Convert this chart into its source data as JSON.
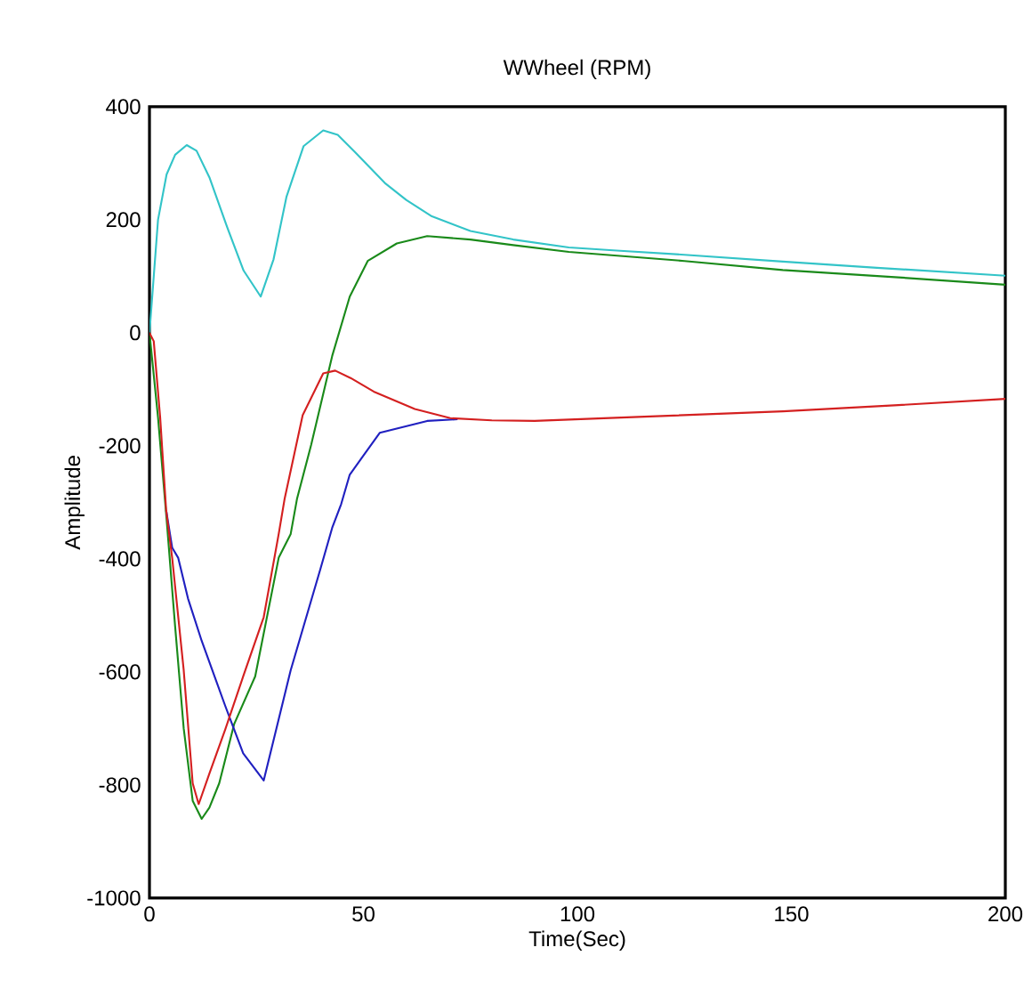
{
  "chart_data": {
    "type": "line",
    "title": "WWheel (RPM)",
    "xlabel": "Time(Sec)",
    "ylabel": "Amplitude",
    "xlim": [
      0,
      200
    ],
    "ylim": [
      -1000,
      400
    ],
    "xticks": [
      0,
      50,
      100,
      150,
      200
    ],
    "yticks": [
      -1000,
      -800,
      -600,
      -400,
      -200,
      0,
      200,
      400
    ],
    "grid": false,
    "series": [
      {
        "color": "#33c4c8",
        "x": [
          0,
          2,
          4,
          6,
          8.7,
          11,
          14,
          18,
          22,
          26,
          29,
          32,
          36,
          40.6,
          44,
          48,
          55,
          60,
          66,
          75,
          85,
          98,
          110,
          125,
          148,
          170,
          200
        ],
        "values": [
          0,
          200,
          280,
          315,
          332,
          322,
          275,
          190,
          110,
          64,
          130,
          240,
          330,
          358,
          350,
          320,
          265,
          235,
          206,
          180,
          165,
          151,
          145,
          138,
          126,
          115,
          101
        ]
      },
      {
        "color": "#1a8a1a",
        "x": [
          0,
          2,
          4,
          6,
          8,
          10.1,
          12.2,
          14,
          16.3,
          19.8,
          24.7,
          30.2,
          33,
          34.5,
          37.8,
          42.7,
          46.8,
          51,
          57.8,
          64.9,
          75,
          85,
          98,
          125,
          148,
          175,
          200
        ],
        "values": [
          0,
          -150,
          -330,
          -520,
          -700,
          -828,
          -860,
          -840,
          -797,
          -692,
          -608,
          -398,
          -356,
          -293,
          -198,
          -41,
          64,
          127,
          158,
          171,
          165,
          155,
          143,
          127,
          111,
          98,
          85
        ]
      },
      {
        "color": "#2020c0",
        "x": [
          3.9,
          5.3,
          6.7,
          9,
          12.2,
          17.7,
          21.9,
          26.7,
          33,
          39.9,
          42.7,
          44.8,
          46.8,
          53.8,
          64.9,
          72
        ],
        "values": [
          -314,
          -380,
          -398,
          -470,
          -545,
          -660,
          -744,
          -792,
          -597,
          -419,
          -345,
          -303,
          -251,
          -177,
          -156,
          -153
        ]
      },
      {
        "color": "#d42020",
        "x": [
          0,
          1,
          2.5,
          3.9,
          5.3,
          8,
          10.1,
          11.5,
          14,
          17.7,
          21.9,
          26.7,
          30.2,
          31.6,
          35.8,
          40.6,
          43.4,
          47,
          52.4,
          62,
          70.3,
          80,
          90,
          117,
          148,
          175,
          200
        ],
        "values": [
          0,
          -15,
          -150,
          -314,
          -398,
          -597,
          -797,
          -834,
          -780,
          -702,
          -608,
          -503,
          -356,
          -293,
          -146,
          -72,
          -67,
          -80,
          -104,
          -135,
          -151,
          -155,
          -156,
          -148,
          -139,
          -128,
          -117
        ]
      }
    ]
  }
}
